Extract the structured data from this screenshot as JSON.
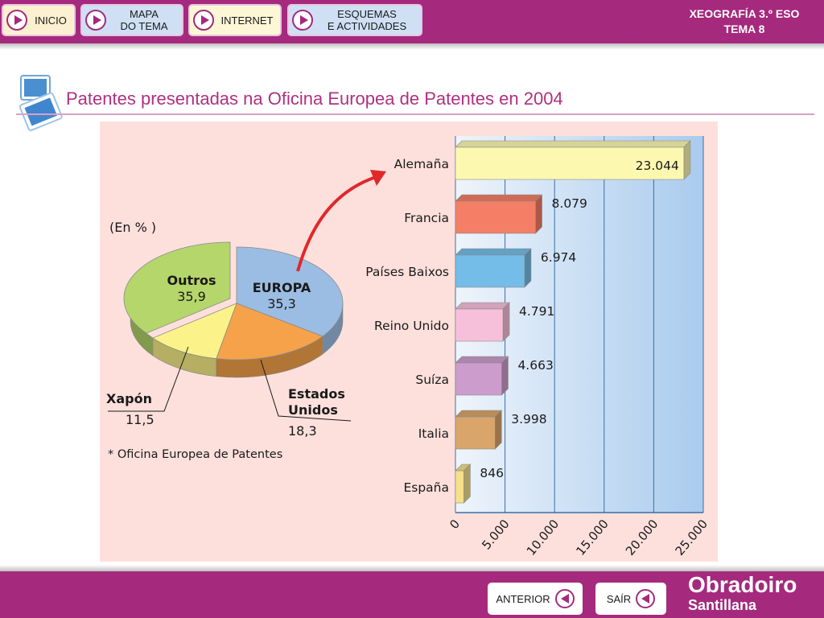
{
  "nav": {
    "inicio": "INICIO",
    "mapa_l1": "MAPA",
    "mapa_l2": "DO TEMA",
    "internet": "INTERNET",
    "esquemas_l1": "ESQUEMAS",
    "esquemas_l2": "E ACTIVIDADES"
  },
  "course": {
    "line1": "XEOGRAFÍA 3.º ESO",
    "line2": "TEMA 8"
  },
  "page_title": "Patentes presentadas na Oficina Europea de Patentes en 2004",
  "footer": {
    "anterior": "ANTERIOR",
    "sair": "SAÍR",
    "brand_line1": "Obradoiro",
    "brand_line2": "Santillana"
  },
  "colors": {
    "accent": "#a52a7e",
    "panel": "#fde0dc"
  },
  "chart_data": [
    {
      "type": "pie",
      "unit_label": "(En % )",
      "footnote": "* Oficina Europea de Patentes",
      "slices": [
        {
          "label": "EUROPA",
          "value": 35.3,
          "value_text": "35,3",
          "color": "#9bbde3"
        },
        {
          "label": "Estados Unidos",
          "label_l1": "Estados",
          "label_l2": "Unidos",
          "value": 18.3,
          "value_text": "18,3",
          "color": "#f6a24a"
        },
        {
          "label": "Xapón",
          "value": 11.5,
          "value_text": "11,5",
          "color": "#fbf28a"
        },
        {
          "label": "Outros",
          "value": 35.9,
          "value_text": "35,9",
          "color": "#b5d66a"
        }
      ]
    },
    {
      "type": "bar",
      "orientation": "horizontal",
      "categories": [
        "Alemaña",
        "Francia",
        "Países Baixos",
        "Reino Unido",
        "Suíza",
        "Italia",
        "España"
      ],
      "values": [
        23044,
        8079,
        6974,
        4791,
        4663,
        3998,
        846
      ],
      "value_labels": [
        "23.044",
        "8.079",
        "6.974",
        "4.791",
        "4.663",
        "3.998",
        "846"
      ],
      "colors": [
        "#fdf8b0",
        "#f47f66",
        "#74bde8",
        "#f7c0da",
        "#cc9dcc",
        "#d9a56b",
        "#f6e08a"
      ],
      "xlim": [
        0,
        25000
      ],
      "xticks": [
        0,
        5000,
        10000,
        15000,
        20000,
        25000
      ],
      "xtick_labels": [
        "0",
        "5.000",
        "10.000",
        "15.000",
        "20.000",
        "25.000"
      ],
      "grid": true
    }
  ]
}
